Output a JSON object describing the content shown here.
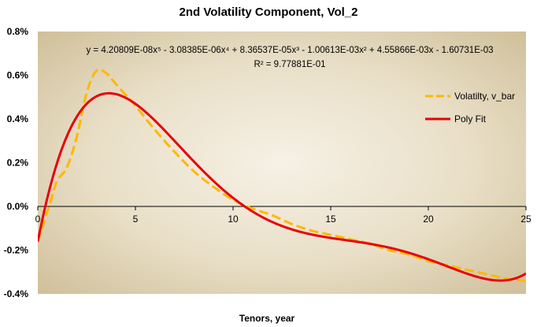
{
  "chart_data": {
    "type": "line",
    "title": "2nd Volatility Component, Vol_2",
    "xlabel": "Tenors, year",
    "ylabel": "",
    "xlim": [
      0,
      25
    ],
    "ylim": [
      -0.004,
      0.008
    ],
    "x_ticks": [
      0,
      5,
      10,
      15,
      20,
      25
    ],
    "y_ticks": [
      -0.004,
      -0.002,
      0,
      0.002,
      0.004,
      0.006,
      0.008
    ],
    "x_tick_labels": [
      "0",
      "5",
      "10",
      "15",
      "20",
      "25"
    ],
    "y_tick_labels": [
      "-0.4%",
      "-0.2%",
      "0.0%",
      "0.2%",
      "0.4%",
      "0.6%",
      "0.8%"
    ],
    "legend_position": "right",
    "grid": false,
    "series": [
      {
        "name": "Volatilty, v_bar",
        "style": "dashed",
        "color": "#FFB800",
        "x": [
          0,
          0.25,
          0.5,
          0.75,
          1,
          1.5,
          2,
          2.5,
          3,
          3.5,
          4,
          5,
          6,
          7,
          8,
          9,
          10,
          11,
          12,
          13,
          14,
          15,
          16,
          17,
          18,
          19,
          20,
          21,
          22,
          23,
          24,
          25
        ],
        "values": [
          -0.0016,
          -0.0009,
          -0.0002,
          0.0005,
          0.0012,
          0.0018,
          0.0032,
          0.0052,
          0.0062,
          0.0061,
          0.0056,
          0.0046,
          0.0035,
          0.0025,
          0.0016,
          0.0009,
          0.0003,
          -0.0001,
          -0.0004,
          -0.0008,
          -0.0011,
          -0.0013,
          -0.0015,
          -0.0017,
          -0.002,
          -0.0022,
          -0.0025,
          -0.0027,
          -0.0029,
          -0.0031,
          -0.0033,
          -0.0034
        ]
      },
      {
        "name": "Poly Fit",
        "style": "solid",
        "color": "#E8000B",
        "coefficients": [
          4.20809e-08,
          -3.08385e-06,
          8.36537e-05,
          -0.00100613,
          0.00455866,
          -0.00160731
        ]
      }
    ],
    "annotations": {
      "equation": "y = 4.20809E-08x⁵  - 3.08385E-06x⁴  + 8.36537E-05x³  - 1.00613E-03x²  + 4.55866E-03x  - 1.60731E-03",
      "r_squared": "R² = 9.77881E-01"
    }
  }
}
